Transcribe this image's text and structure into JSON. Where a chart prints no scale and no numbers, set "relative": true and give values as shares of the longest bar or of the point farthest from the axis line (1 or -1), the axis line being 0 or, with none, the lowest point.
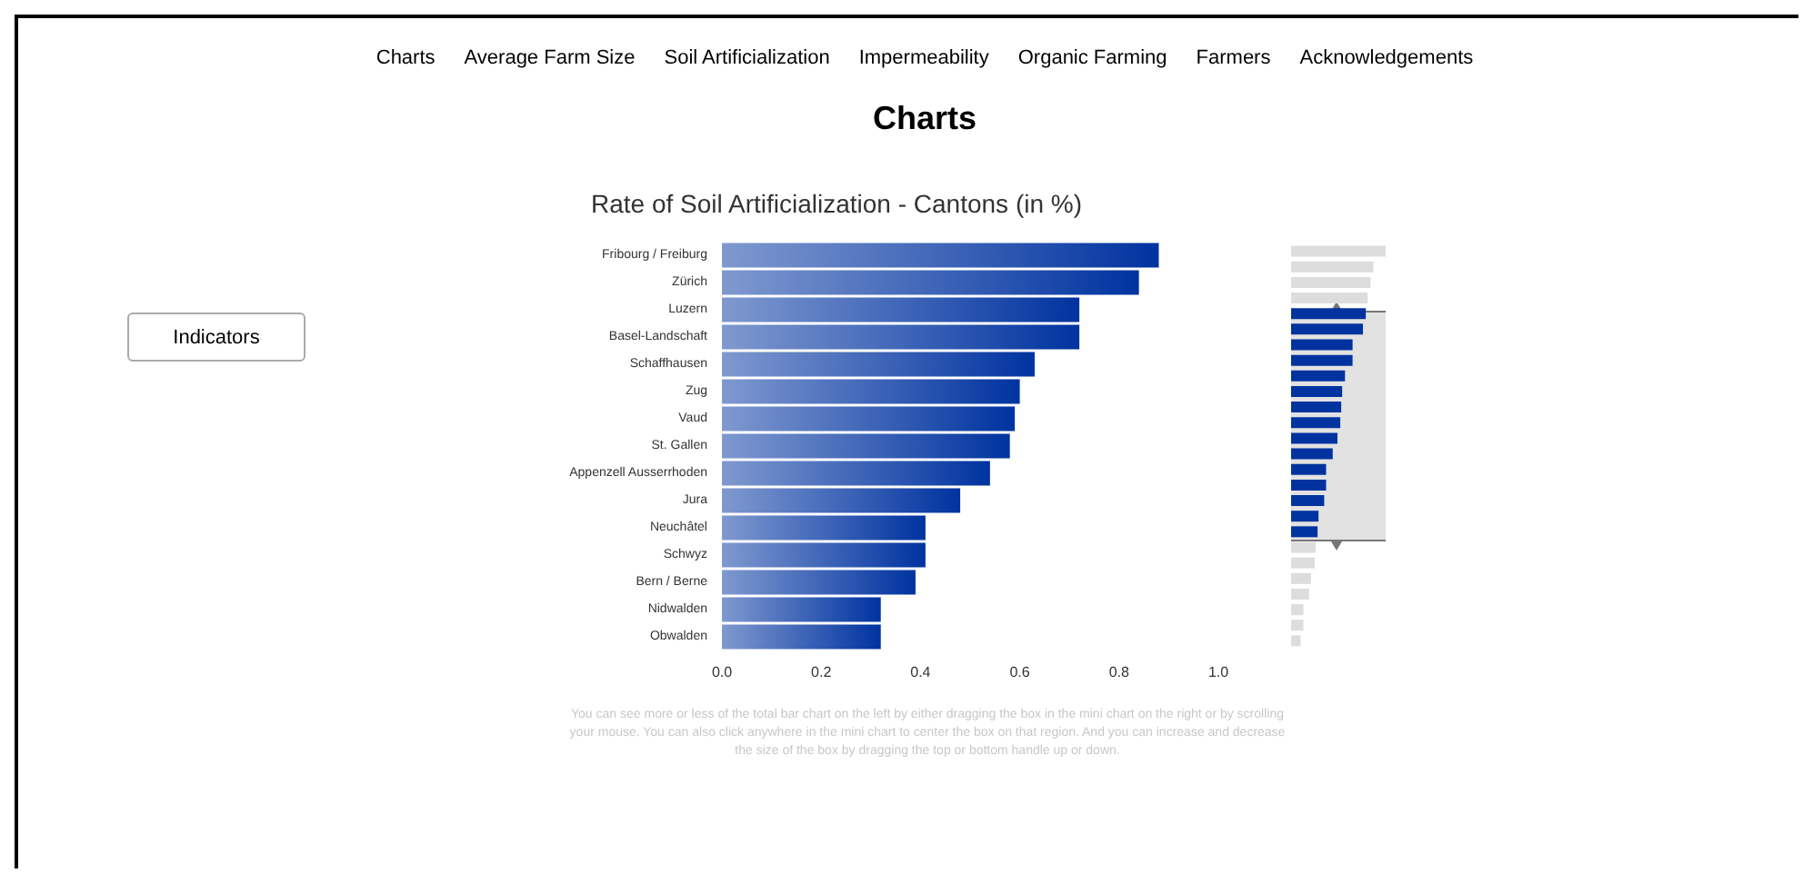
{
  "chart_data": [
    {
      "type": "other",
      "title": "Charts",
      "annotations": [
        "Charts",
        "Average Farm Size",
        "Soil Artificialization",
        "Impermeability",
        "Organic Farming",
        "Farmers",
        "Acknowledgements"
      ]
    },
    {
      "type": "other",
      "annotations": [
        "Indicators"
      ]
    },
    {
      "type": "bar",
      "orientation": "horizontal",
      "title": "Rate of Soil Artificialization - Cantons (in %)",
      "categories": [
        "Fribourg / Freiburg",
        "Zürich",
        "Luzern",
        "Basel-Landschaft",
        "Schaffhausen",
        "Zug",
        "Vaud",
        "St. Gallen",
        "Appenzell Ausserrhoden",
        "Jura",
        "Neuchâtel",
        "Schwyz",
        "Bern / Berne",
        "Nidwalden",
        "Obwalden"
      ],
      "values": [
        0.88,
        0.84,
        0.72,
        0.72,
        0.63,
        0.6,
        0.59,
        0.58,
        0.54,
        0.48,
        0.41,
        0.41,
        0.39,
        0.32,
        0.32
      ],
      "color": "#0033a0",
      "xlim": [
        0,
        1
      ],
      "xticks": [
        {
          "value": 0,
          "label": "0.0"
        },
        0.2,
        0.4,
        0.6,
        0.8,
        {
          "value": 1,
          "label": "1.0"
        }
      ],
      "annotations": [
        "You can see more or less of the total bar chart on the left by either dragging the box in the mini chart on the right or by scrolling your mouse. You can also click anywhere in the mini chart to center the box on that region. And you can increase and decrease the size of the box by dragging the top or bottom handle up or down."
      ]
    },
    {
      "type": "bar",
      "orientation": "horizontal",
      "relative": true,
      "categories": [
        null,
        null,
        null,
        null,
        null,
        null,
        null,
        null,
        null,
        null,
        null,
        null,
        null,
        null,
        null,
        null,
        null,
        null,
        null,
        null,
        null,
        null,
        null,
        null,
        null,
        null
      ],
      "values": [
        1,
        0.87,
        0.84,
        0.81,
        0.79,
        0.76,
        0.65,
        0.65,
        0.57,
        0.54,
        0.53,
        0.52,
        0.49,
        0.44,
        0.37,
        0.37,
        0.35,
        0.29,
        0.28,
        0.26,
        0.25,
        0.21,
        0.19,
        0.13,
        0.13,
        0.1
      ],
      "colors": [
        "#dddddd",
        "#dddddd",
        "#dddddd",
        "#dddddd",
        "#0033a0",
        "#0033a0",
        "#0033a0",
        "#0033a0",
        "#0033a0",
        "#0033a0",
        "#0033a0",
        "#0033a0",
        "#0033a0",
        "#0033a0",
        "#0033a0",
        "#0033a0",
        "#0033a0",
        "#0033a0",
        "#0033a0",
        "#dddddd",
        "#dddddd",
        "#dddddd",
        "#dddddd",
        "#dddddd",
        "#dddddd",
        "#dddddd"
      ]
    }
  ]
}
